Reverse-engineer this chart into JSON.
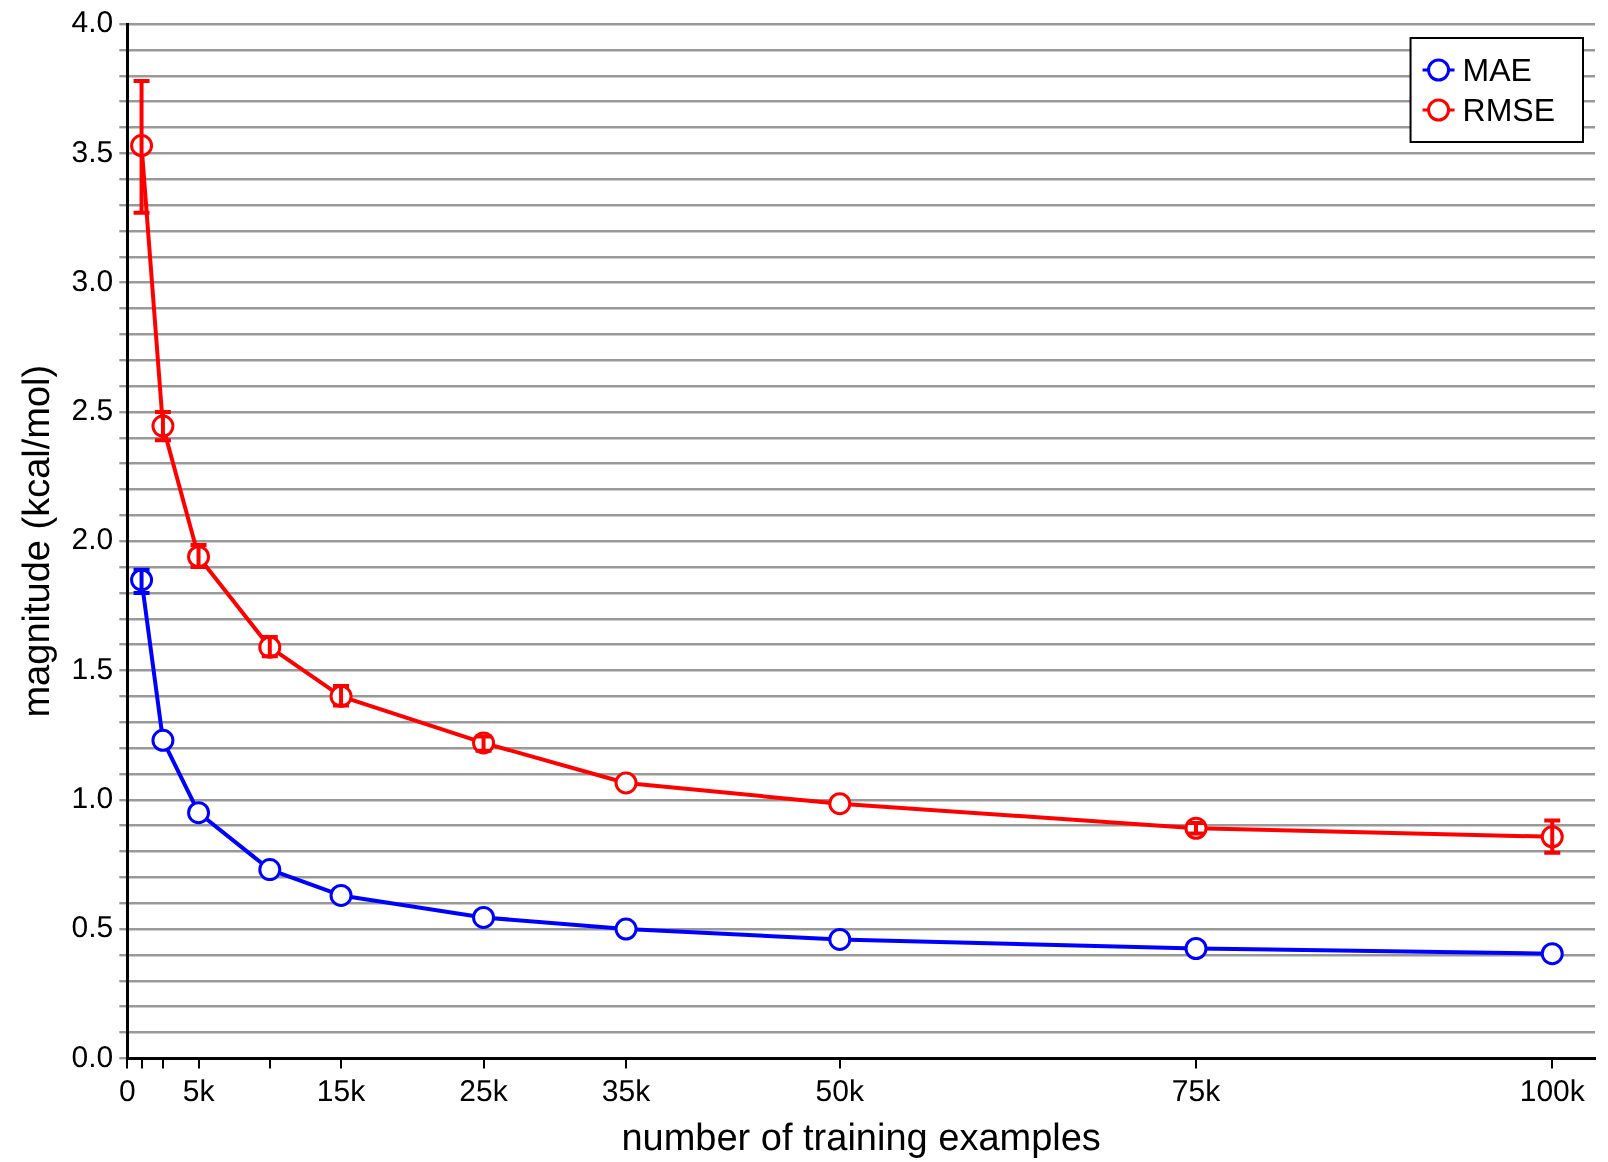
{
  "chart_data": {
    "type": "line",
    "xlabel": "number of training examples",
    "ylabel": "magnitude (kcal/mol)",
    "x": [
      1000,
      2500,
      5000,
      10000,
      15000,
      25000,
      35000,
      50000,
      75000,
      100000
    ],
    "series": [
      {
        "name": "MAE",
        "color": "#0000ff",
        "values": [
          1.85,
          1.23,
          0.95,
          0.73,
          0.63,
          0.545,
          0.5,
          0.46,
          0.425,
          0.405
        ],
        "errors": [
          [
            1.8,
            1.89
          ],
          null,
          null,
          null,
          null,
          null,
          null,
          null,
          null,
          null
        ]
      },
      {
        "name": "RMSE",
        "color": "#ff0000",
        "values": [
          3.53,
          2.445,
          1.94,
          1.59,
          1.4,
          1.22,
          1.065,
          0.985,
          0.89,
          0.857
        ],
        "errors": [
          [
            3.27,
            3.78
          ],
          [
            2.39,
            2.5
          ],
          [
            1.9,
            1.985
          ],
          [
            1.555,
            1.63
          ],
          [
            1.365,
            1.44
          ],
          [
            1.19,
            1.245
          ],
          null,
          null,
          [
            0.87,
            0.91
          ],
          [
            0.795,
            0.92
          ]
        ]
      }
    ],
    "xlim": [
      0,
      103000
    ],
    "xticks": [
      {
        "value": 0,
        "label": "0"
      },
      {
        "value": 1000,
        "label": null
      },
      {
        "value": 2500,
        "label": null
      },
      {
        "value": 5000,
        "label": "5k"
      },
      {
        "value": 10000,
        "label": null
      },
      {
        "value": 15000,
        "label": "15k"
      },
      {
        "value": 25000,
        "label": "25k"
      },
      {
        "value": 35000,
        "label": "35k"
      },
      {
        "value": 50000,
        "label": "50k"
      },
      {
        "value": 75000,
        "label": "75k"
      },
      {
        "value": 100000,
        "label": "100k"
      }
    ],
    "ylim": [
      0,
      4
    ],
    "yticks": [
      {
        "value": 0,
        "label": "0.0"
      },
      {
        "value": 0.1,
        "label": null
      },
      {
        "value": 0.2,
        "label": null
      },
      {
        "value": 0.3,
        "label": null
      },
      {
        "value": 0.4,
        "label": null
      },
      {
        "value": 0.5,
        "label": "0.5"
      },
      {
        "value": 0.6,
        "label": null
      },
      {
        "value": 0.7,
        "label": null
      },
      {
        "value": 0.8,
        "label": null
      },
      {
        "value": 0.9,
        "label": null
      },
      {
        "value": 1,
        "label": "1.0"
      },
      {
        "value": 1.1,
        "label": null
      },
      {
        "value": 1.2,
        "label": null
      },
      {
        "value": 1.3,
        "label": null
      },
      {
        "value": 1.4,
        "label": null
      },
      {
        "value": 1.5,
        "label": "1.5"
      },
      {
        "value": 1.6,
        "label": null
      },
      {
        "value": 1.7,
        "label": null
      },
      {
        "value": 1.8,
        "label": null
      },
      {
        "value": 1.9,
        "label": null
      },
      {
        "value": 2,
        "label": "2.0"
      },
      {
        "value": 2.1,
        "label": null
      },
      {
        "value": 2.2,
        "label": null
      },
      {
        "value": 2.3,
        "label": null
      },
      {
        "value": 2.4,
        "label": null
      },
      {
        "value": 2.5,
        "label": "2.5"
      },
      {
        "value": 2.6,
        "label": null
      },
      {
        "value": 2.7,
        "label": null
      },
      {
        "value": 2.8,
        "label": null
      },
      {
        "value": 2.9,
        "label": null
      },
      {
        "value": 3,
        "label": "3.0"
      },
      {
        "value": 3.1,
        "label": null
      },
      {
        "value": 3.2,
        "label": null
      },
      {
        "value": 3.3,
        "label": null
      },
      {
        "value": 3.4,
        "label": null
      },
      {
        "value": 3.5,
        "label": "3.5"
      },
      {
        "value": 3.6,
        "label": null
      },
      {
        "value": 3.7,
        "label": null
      },
      {
        "value": 3.8,
        "label": null
      },
      {
        "value": 3.9,
        "label": null
      },
      {
        "value": 4,
        "label": "4.0"
      }
    ],
    "grid": "y",
    "legend": "top right",
    "marker": "circle",
    "line_style": "solid"
  }
}
